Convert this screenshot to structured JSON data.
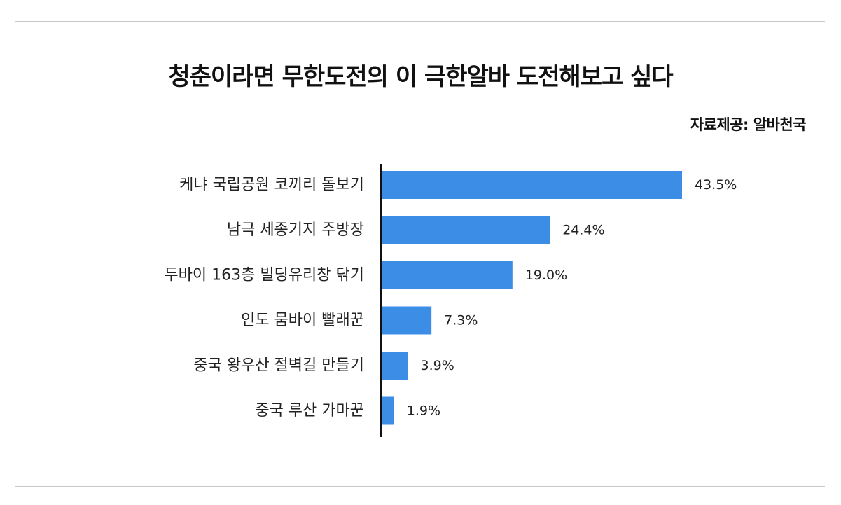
{
  "title": "청춘이라면 무한도전의 이 극한알바 도전해보고 싶다",
  "source": "자료제공: 알바천국",
  "colors": {
    "bar": "#3b8de5",
    "axis": "#111111",
    "rule": "#c8c8c8"
  },
  "chart_data": {
    "type": "bar",
    "orientation": "horizontal",
    "categories": [
      "케냐 국립공원 코끼리 돌보기",
      "남극 세종기지 주방장",
      "두바이 163층 빌딩유리창 닦기",
      "인도 뭄바이 빨래꾼",
      "중국 왕우산 절벽길 만들기",
      "중국 루산 가마꾼"
    ],
    "values": [
      43.5,
      24.4,
      19.0,
      7.3,
      3.9,
      1.9
    ],
    "value_labels": [
      "43.5%",
      "24.4%",
      "19.0%",
      "7.3%",
      "3.9%",
      "1.9%"
    ],
    "xlim": [
      0,
      43.5
    ],
    "grid": false,
    "legend": "none"
  }
}
